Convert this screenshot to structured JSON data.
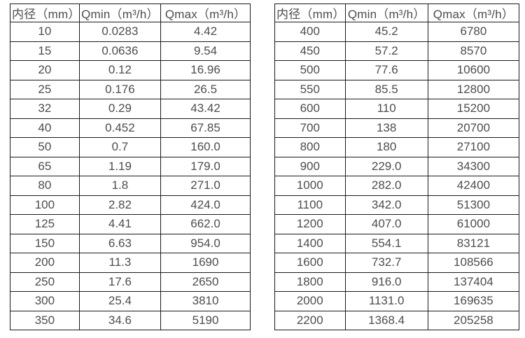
{
  "colors": {
    "background": "#ffffff",
    "border": "#1a1a1a",
    "text": "#4d4d4d"
  },
  "tables": [
    {
      "name": "flow-spec-table-small-diameters",
      "headers": [
        "内径（mm）",
        "Qmin（m³/h）",
        "Qmax（m³/h）"
      ],
      "rows": [
        [
          "10",
          "0.0283",
          "4.42"
        ],
        [
          "15",
          "0.0636",
          "9.54"
        ],
        [
          "20",
          "0.12",
          "16.96"
        ],
        [
          "25",
          "0.176",
          "26.5"
        ],
        [
          "32",
          "0.29",
          "43.42"
        ],
        [
          "40",
          "0.452",
          "67.85"
        ],
        [
          "50",
          "0.7",
          "160.0"
        ],
        [
          "65",
          "1.19",
          "179.0"
        ],
        [
          "80",
          "1.8",
          "271.0"
        ],
        [
          "100",
          "2.82",
          "424.0"
        ],
        [
          "125",
          "4.41",
          "662.0"
        ],
        [
          "150",
          "6.63",
          "954.0"
        ],
        [
          "200",
          "11.3",
          "1690"
        ],
        [
          "250",
          "17.6",
          "2650"
        ],
        [
          "300",
          "25.4",
          "3810"
        ],
        [
          "350",
          "34.6",
          "5190"
        ]
      ]
    },
    {
      "name": "flow-spec-table-large-diameters",
      "headers": [
        "内径（mm）",
        "Qmin（m³/h）",
        "Qmax（m³/h）"
      ],
      "rows": [
        [
          "400",
          "45.2",
          "6780"
        ],
        [
          "450",
          "57.2",
          "8570"
        ],
        [
          "500",
          "77.6",
          "10600"
        ],
        [
          "550",
          "85.5",
          "12800"
        ],
        [
          "600",
          "110",
          "15200"
        ],
        [
          "700",
          "138",
          "20700"
        ],
        [
          "800",
          "180",
          "27100"
        ],
        [
          "900",
          "229.0",
          "34300"
        ],
        [
          "1000",
          "282.0",
          "42400"
        ],
        [
          "1100",
          "342.0",
          "51300"
        ],
        [
          "1200",
          "407.0",
          "61000"
        ],
        [
          "1400",
          "554.1",
          "83121"
        ],
        [
          "1600",
          "732.7",
          "108566"
        ],
        [
          "1800",
          "916.0",
          "137404"
        ],
        [
          "2000",
          "1131.0",
          "169635"
        ],
        [
          "2200",
          "1368.4",
          "205258"
        ]
      ]
    }
  ]
}
